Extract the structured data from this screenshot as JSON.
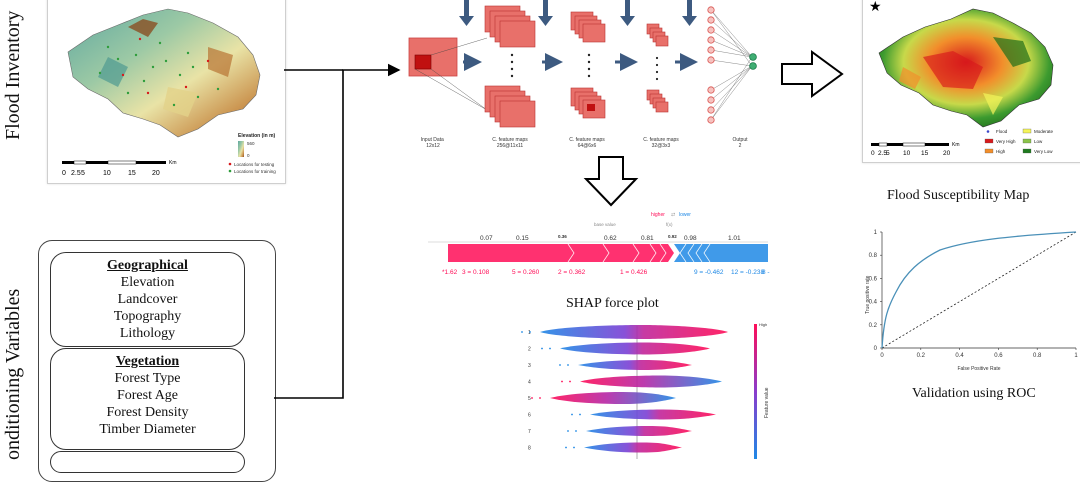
{
  "left_labels": {
    "flood_inventory": "Flood Inventory",
    "conditioning_variables": "onditioning Variables"
  },
  "inventory_map": {
    "legend_title": "Elevation (in m)",
    "legend_high": "560",
    "legend_low": "0",
    "legend_testing": "Locations for testing",
    "legend_training": "Locations for training",
    "scale_unit": "Km",
    "scale_ticks": [
      "0",
      "2.5",
      "5",
      "10",
      "15",
      "20"
    ]
  },
  "groups": [
    {
      "title": "Geographical",
      "items": [
        "Elevation",
        "Landcover",
        "Topography",
        "Lithology"
      ]
    },
    {
      "title": "Vegetation",
      "items": [
        "Forest Type",
        "Forest Age",
        "Forest Density",
        "Timber Diameter"
      ]
    }
  ],
  "cnn": {
    "labels": [
      "Input Data\n12x12",
      "C. feature maps\n256@11x11",
      "C. feature maps\n64@6x6",
      "C. feature maps\n32@3x3",
      "Output\n2"
    ]
  },
  "shap_force": {
    "caption": "SHAP force plot",
    "legend_higher": "higher",
    "legend_lower": "lower",
    "base_label": "base value",
    "fx_label": "f(x)",
    "ticks": [
      "0.07",
      "0.15",
      "0.36",
      "0.62",
      "0.81",
      "0.92",
      "0.98",
      "1.01"
    ],
    "features": [
      "*1.62",
      "3 = 0.108",
      "5 = 0.260",
      "2 = 0.362",
      "1 = 0.426",
      "9 = -0.462",
      "12 = -0.238",
      "8 -"
    ]
  },
  "shap_summary": {
    "rows": [
      "1",
      "2",
      "3",
      "4",
      "5",
      "6",
      "7",
      "8"
    ],
    "colorbar_high": "High",
    "colorbar_label": "Feature value"
  },
  "susceptibility_map": {
    "caption": "Flood Susceptibility Map",
    "scale_unit": "Km",
    "scale_ticks": [
      "0",
      "2.5",
      "5",
      "10",
      "15",
      "20"
    ],
    "legend": [
      {
        "label": "Flood",
        "color": "#3a46c8"
      },
      {
        "label": "Very High",
        "color": "#d7191c"
      },
      {
        "label": "High",
        "color": "#f28e2b"
      },
      {
        "label": "Moderate",
        "color": "#f4f45a"
      },
      {
        "label": "Low",
        "color": "#8bc34a"
      },
      {
        "label": "Very Low",
        "color": "#1f7a1f"
      }
    ]
  },
  "roc": {
    "caption": "Validation using ROC",
    "xlabel": "False Positive Rate",
    "ylabel": "True positive rate",
    "x_ticks": [
      "0",
      "0.2",
      "0.4",
      "0.6",
      "0.8",
      "1"
    ],
    "y_ticks": [
      "0",
      "0.2",
      "0.4",
      "0.6",
      "0.8",
      "1"
    ]
  },
  "colors": {
    "arrow_blue": "#3d5a80",
    "cnn_red": "#e8706a",
    "shap_pink": "#ff0d57",
    "shap_blue": "#1e88e5"
  }
}
